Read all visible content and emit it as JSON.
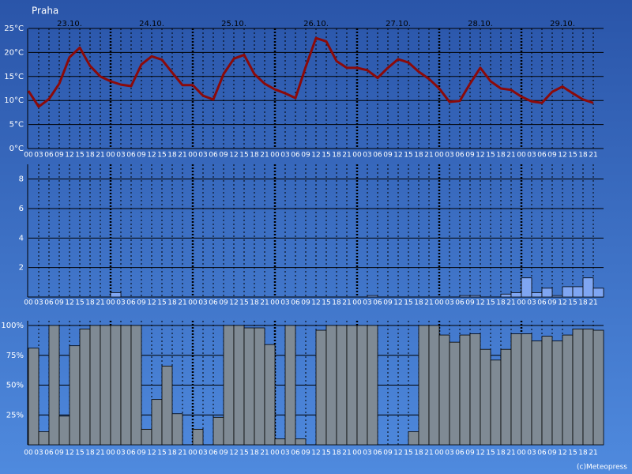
{
  "footer": "(c)Meteopress",
  "chart_data": [
    {
      "type": "line",
      "title": "Praha",
      "day_labels": [
        "23.10.",
        "24.10.",
        "25.10.",
        "26.10.",
        "27.10.",
        "28.10.",
        "29.10."
      ],
      "categories": [
        "00",
        "03",
        "06",
        "09",
        "12",
        "15",
        "18",
        "21",
        "00",
        "03",
        "06",
        "09",
        "12",
        "15",
        "18",
        "21",
        "00",
        "03",
        "06",
        "09",
        "12",
        "15",
        "18",
        "21",
        "00",
        "03",
        "06",
        "09",
        "12",
        "15",
        "18",
        "21",
        "00",
        "03",
        "06",
        "09",
        "12",
        "15",
        "18",
        "21",
        "00",
        "03",
        "06",
        "09",
        "12",
        "15",
        "18",
        "21",
        "00",
        "03",
        "06",
        "09",
        "12",
        "15",
        "18",
        "21"
      ],
      "values": [
        12,
        8.7,
        10.3,
        13.5,
        19,
        21,
        17.2,
        15,
        14,
        13.3,
        13,
        17.5,
        19.2,
        18.5,
        15.8,
        13.2,
        13.2,
        11,
        10.2,
        15.5,
        18.7,
        19.5,
        15.5,
        13.5,
        12.3,
        11.5,
        10.5,
        17,
        23,
        22.3,
        18.2,
        16.8,
        16.8,
        16.3,
        14.7,
        16.8,
        18.6,
        17.9,
        16,
        14.5,
        12.5,
        9.7,
        9.9,
        13.5,
        16.8,
        14,
        12.5,
        12.2,
        10.8,
        9.8,
        9.5,
        11.8,
        12.9,
        11.5,
        10.2,
        9.5
      ],
      "color": "#8b0a0a",
      "ylim": [
        0,
        25
      ],
      "yticks": [
        {
          "value": 0,
          "label": "0°C"
        },
        {
          "value": 5,
          "label": "5°C"
        },
        {
          "value": 10,
          "label": "10°C"
        },
        {
          "value": 15,
          "label": "15°C"
        },
        {
          "value": 20,
          "label": "20°C"
        },
        {
          "value": 25,
          "label": "25°C"
        }
      ],
      "grid": true
    },
    {
      "type": "bar",
      "categories": [
        "00",
        "03",
        "06",
        "09",
        "12",
        "15",
        "18",
        "21",
        "00",
        "03",
        "06",
        "09",
        "12",
        "15",
        "18",
        "21",
        "00",
        "03",
        "06",
        "09",
        "12",
        "15",
        "18",
        "21",
        "00",
        "03",
        "06",
        "09",
        "12",
        "15",
        "18",
        "21",
        "00",
        "03",
        "06",
        "09",
        "12",
        "15",
        "18",
        "21",
        "00",
        "03",
        "06",
        "09",
        "12",
        "15",
        "18",
        "21",
        "00",
        "03",
        "06",
        "09",
        "12",
        "15",
        "18",
        "21"
      ],
      "values": [
        0,
        0,
        0,
        0,
        0,
        0,
        0,
        0,
        0.3,
        0,
        0,
        0,
        0,
        0,
        0,
        0,
        0,
        0,
        0,
        0,
        0,
        0,
        0,
        0,
        0,
        0,
        0,
        0,
        0,
        0,
        0,
        0,
        0,
        0.1,
        0,
        0,
        0,
        0,
        0,
        0,
        0,
        0,
        0.1,
        0.1,
        0,
        0,
        0.2,
        0.3,
        1.3,
        0.3,
        0.6,
        0.1,
        0.7,
        0.7,
        1.3,
        0.6
      ],
      "color": "#7fa6f2",
      "ylim": [
        0,
        9
      ],
      "yticks": [
        2,
        4,
        6,
        8
      ],
      "grid": true
    },
    {
      "type": "bar",
      "categories": [
        "00",
        "03",
        "06",
        "09",
        "12",
        "15",
        "18",
        "21",
        "00",
        "03",
        "06",
        "09",
        "12",
        "15",
        "18",
        "21",
        "00",
        "03",
        "06",
        "09",
        "12",
        "15",
        "18",
        "21",
        "00",
        "03",
        "06",
        "09",
        "12",
        "15",
        "18",
        "21",
        "00",
        "03",
        "06",
        "09",
        "12",
        "15",
        "18",
        "21",
        "00",
        "03",
        "06",
        "09",
        "12",
        "15",
        "18",
        "21",
        "00",
        "03",
        "06",
        "09",
        "12",
        "15",
        "18",
        "21"
      ],
      "values": [
        81,
        11,
        100,
        24,
        83,
        97,
        100,
        100,
        100,
        100,
        100,
        13,
        38,
        66,
        26,
        0,
        13,
        0,
        23,
        100,
        100,
        98,
        98,
        84,
        5,
        100,
        5,
        0,
        96,
        100,
        100,
        100,
        100,
        100,
        0,
        0,
        0,
        11,
        100,
        100,
        92,
        86,
        92,
        93,
        80,
        71,
        80,
        93,
        93,
        87,
        91,
        87,
        92,
        97,
        97,
        96
      ],
      "color": "#7f8a94",
      "ylim": [
        0,
        100
      ],
      "yticks": [
        {
          "value": 25,
          "label": "25%"
        },
        {
          "value": 50,
          "label": "50%"
        },
        {
          "value": 75,
          "label": "75%"
        },
        {
          "value": 100,
          "label": "100%"
        }
      ],
      "grid": true
    }
  ]
}
